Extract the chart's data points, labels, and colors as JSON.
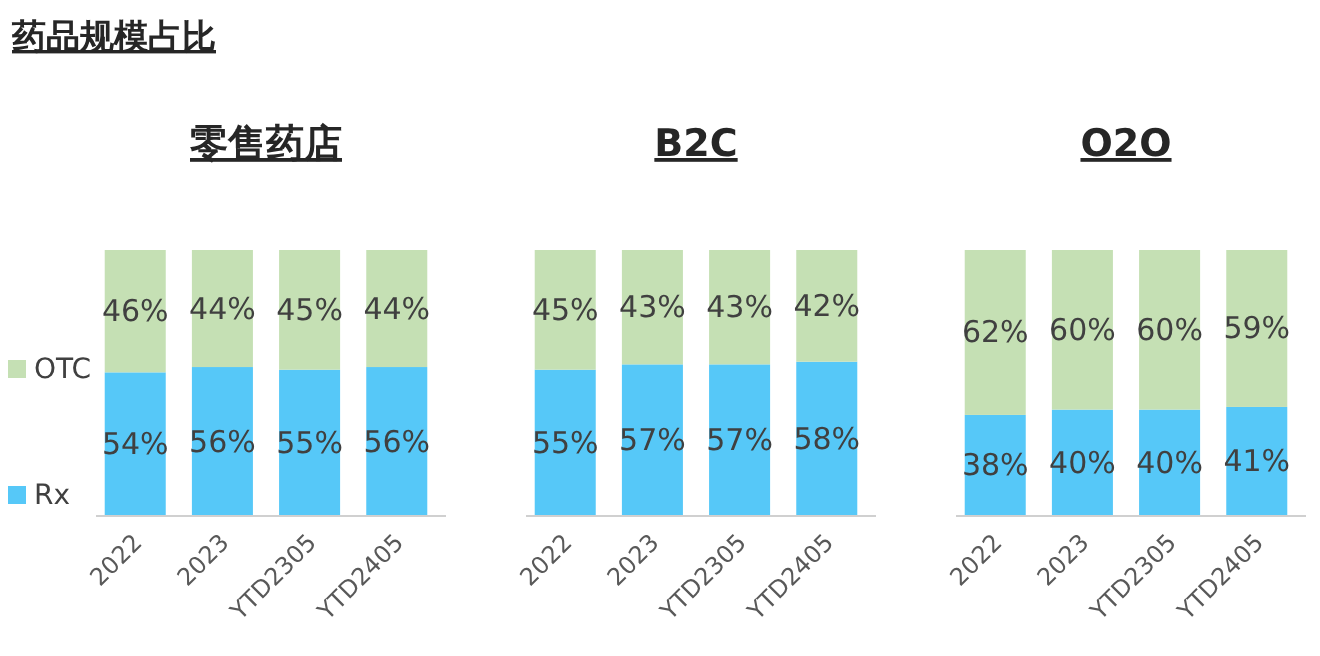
{
  "chart_data": [
    {
      "type": "bar",
      "title": "药品规模占比",
      "subtitle": "零售药店",
      "categories": [
        "2022",
        "2023",
        "YTD2305",
        "YTD2405"
      ],
      "stacked": true,
      "legend": "left",
      "tick_labels": "x",
      "series": [
        {
          "name": "Rx",
          "color": "#56c8f8",
          "values": [
            54,
            56,
            55,
            56
          ],
          "value_labels": [
            "54%",
            "56%",
            "55%",
            "56%"
          ]
        },
        {
          "name": "OTC",
          "color": "#c5e0b4",
          "values": [
            46,
            44,
            45,
            44
          ],
          "value_labels": [
            "46%",
            "44%",
            "45%",
            "44%"
          ]
        }
      ]
    },
    {
      "type": "bar",
      "subtitle": "B2C",
      "categories": [
        "2022",
        "2023",
        "YTD2305",
        "YTD2405"
      ],
      "stacked": true,
      "tick_labels": "x",
      "series": [
        {
          "color": "#56c8f8",
          "values": [
            55,
            57,
            57,
            58
          ],
          "value_labels": [
            "55%",
            "57%",
            "57%",
            "58%"
          ]
        },
        {
          "color": "#c5e0b4",
          "values": [
            45,
            43,
            43,
            42
          ],
          "value_labels": [
            "45%",
            "43%",
            "43%",
            "42%"
          ]
        }
      ]
    },
    {
      "type": "bar",
      "subtitle": "O2O",
      "categories": [
        "2022",
        "2023",
        "YTD2305",
        "YTD2405"
      ],
      "stacked": true,
      "tick_labels": "x",
      "series": [
        {
          "color": "#56c8f8",
          "values": [
            38,
            40,
            40,
            41
          ],
          "value_labels": [
            "38%",
            "40%",
            "40%",
            "41%"
          ]
        },
        {
          "color": "#c5e0b4",
          "values": [
            62,
            60,
            60,
            59
          ],
          "value_labels": [
            "62%",
            "60%",
            "60%",
            "59%"
          ]
        }
      ]
    }
  ]
}
